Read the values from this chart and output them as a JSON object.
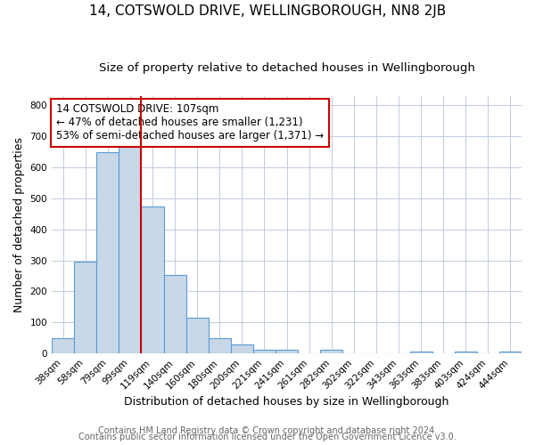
{
  "title": "14, COTSWOLD DRIVE, WELLINGBOROUGH, NN8 2JB",
  "subtitle": "Size of property relative to detached houses in Wellingborough",
  "xlabel": "Distribution of detached houses by size in Wellingborough",
  "ylabel": "Number of detached properties",
  "bin_labels": [
    "38sqm",
    "58sqm",
    "79sqm",
    "99sqm",
    "119sqm",
    "140sqm",
    "160sqm",
    "180sqm",
    "200sqm",
    "221sqm",
    "241sqm",
    "261sqm",
    "282sqm",
    "302sqm",
    "322sqm",
    "343sqm",
    "363sqm",
    "383sqm",
    "403sqm",
    "424sqm",
    "444sqm"
  ],
  "bar_heights": [
    48,
    295,
    650,
    665,
    475,
    252,
    115,
    48,
    28,
    13,
    13,
    0,
    13,
    0,
    0,
    0,
    5,
    0,
    5,
    0,
    5
  ],
  "bar_color": "#c8d8e8",
  "bar_edge_color": "#5b9bd5",
  "vline_x": 3.5,
  "vline_color": "#cc0000",
  "annotation_text": "14 COTSWOLD DRIVE: 107sqm\n← 47% of detached houses are smaller (1,231)\n53% of semi-detached houses are larger (1,371) →",
  "annotation_box_color": "#ffffff",
  "annotation_box_edgecolor": "#cc0000",
  "ylim": [
    0,
    830
  ],
  "yticks": [
    0,
    100,
    200,
    300,
    400,
    500,
    600,
    700,
    800
  ],
  "footer_line1": "Contains HM Land Registry data © Crown copyright and database right 2024.",
  "footer_line2": "Contains public sector information licensed under the Open Government Licence v3.0.",
  "background_color": "#ffffff",
  "grid_color": "#c0cce0",
  "title_fontsize": 11,
  "subtitle_fontsize": 9.5,
  "axis_label_fontsize": 9,
  "tick_fontsize": 7.5,
  "annotation_fontsize": 8.5,
  "footer_fontsize": 7
}
